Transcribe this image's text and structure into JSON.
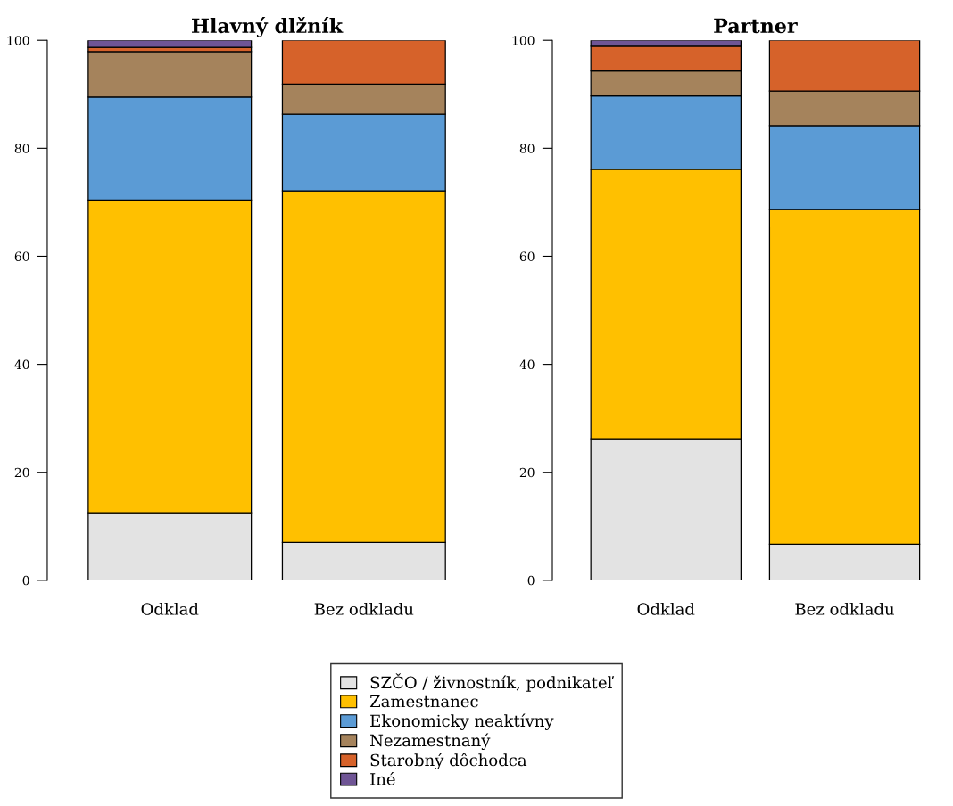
{
  "chart_data": [
    {
      "type": "bar",
      "title": "Hlavný dlžník",
      "categories": [
        "Odklad",
        "Bez odkladu"
      ],
      "stacked": true,
      "ylim": [
        0,
        100
      ],
      "yticks": [
        0,
        20,
        40,
        60,
        80,
        100
      ],
      "legend": "bottom",
      "series": [
        {
          "name": "SZČO / živnostník, podnikateľ",
          "color": "#e3e3e3",
          "values": [
            12.5,
            7.0
          ]
        },
        {
          "name": "Zamestnanec",
          "color": "#ffc000",
          "values": [
            57.9,
            65.1
          ]
        },
        {
          "name": "Ekonomicky neaktívny",
          "color": "#5b9bd5",
          "values": [
            19.1,
            14.2
          ]
        },
        {
          "name": "Nezamestnaný",
          "color": "#a5835c",
          "values": [
            8.4,
            5.6
          ]
        },
        {
          "name": "Starobný dôchodca",
          "color": "#d6622a",
          "values": [
            0.8,
            8.1
          ]
        },
        {
          "name": "Iné",
          "color": "#6f5595",
          "values": [
            1.3,
            null
          ]
        }
      ]
    },
    {
      "type": "bar",
      "title": "Partner",
      "categories": [
        "Odklad",
        "Bez odkladu"
      ],
      "stacked": true,
      "ylim": [
        0,
        100
      ],
      "yticks": [
        0,
        20,
        40,
        60,
        80,
        100
      ],
      "series": [
        {
          "color": "#e3e3e3",
          "values": [
            26.2,
            6.7
          ]
        },
        {
          "color": "#ffc000",
          "values": [
            49.9,
            62.0
          ]
        },
        {
          "color": "#5b9bd5",
          "values": [
            13.6,
            15.5
          ]
        },
        {
          "color": "#a5835c",
          "values": [
            4.6,
            6.4
          ]
        },
        {
          "color": "#d6622a",
          "values": [
            4.6,
            9.4
          ]
        },
        {
          "color": "#6f5595",
          "values": [
            1.1,
            null
          ]
        }
      ]
    }
  ]
}
